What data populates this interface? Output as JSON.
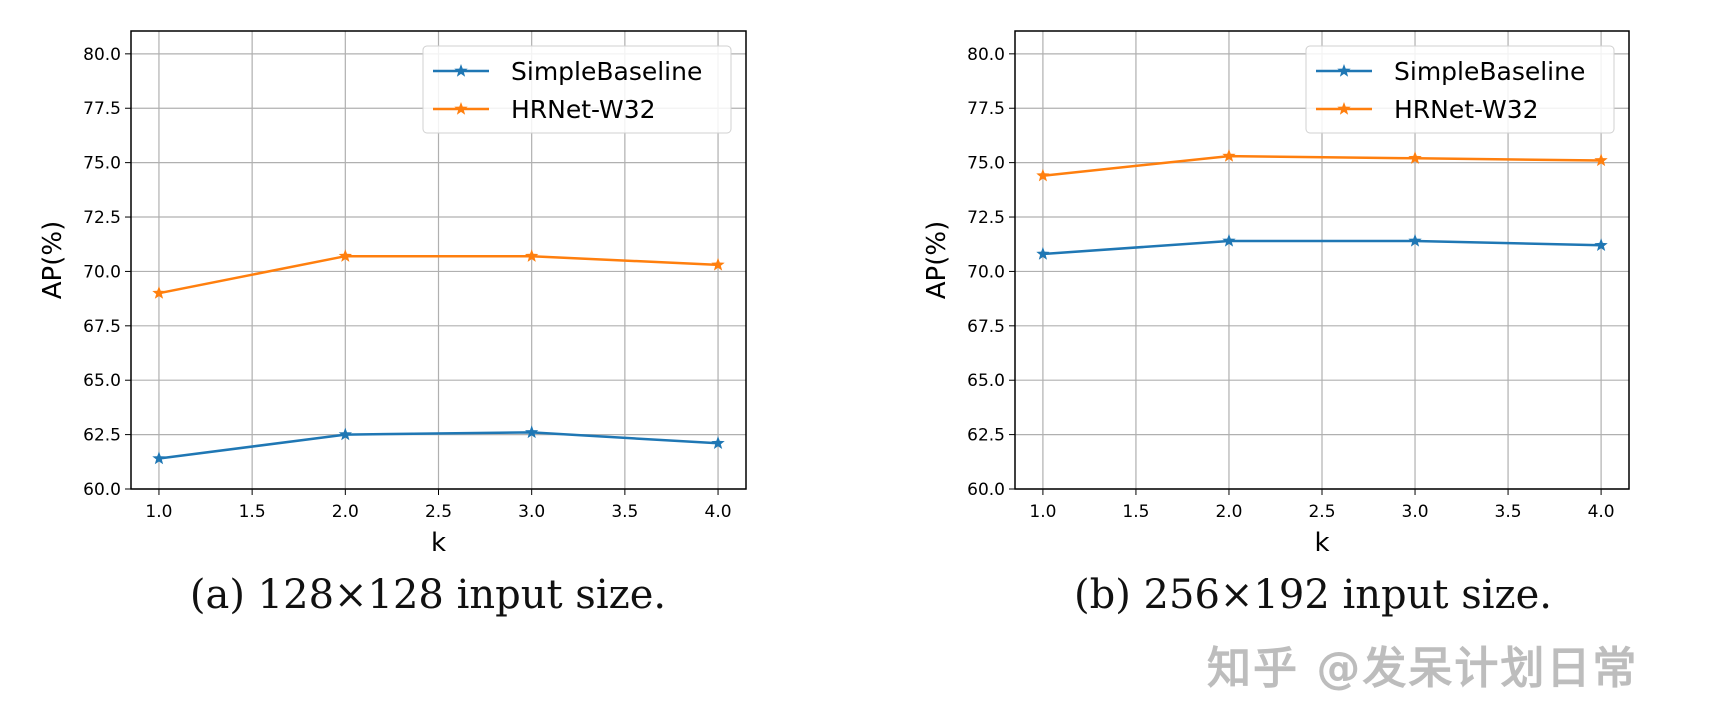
{
  "chart_data": [
    {
      "type": "line",
      "caption": "(a) 128×128 input size.",
      "xlabel": "k",
      "ylabel": "AP(%)",
      "x": [
        1.0,
        2.0,
        3.0,
        4.0
      ],
      "xticks": [
        "1.0",
        "1.5",
        "2.0",
        "2.5",
        "3.0",
        "3.5",
        "4.0"
      ],
      "yticks": [
        "60.0",
        "62.5",
        "65.0",
        "67.5",
        "70.0",
        "72.5",
        "75.0",
        "77.5",
        "80.0"
      ],
      "xlim": [
        0.85,
        4.15
      ],
      "ylim": [
        60,
        81.05
      ],
      "grid": true,
      "legend_position": "top-right",
      "marker": "star",
      "series": [
        {
          "name": "SimpleBaseline",
          "color": "#1f77b4",
          "values": [
            61.4,
            62.5,
            62.6,
            62.1
          ]
        },
        {
          "name": "HRNet-W32",
          "color": "#ff7f0e",
          "values": [
            69.0,
            70.7,
            70.7,
            70.3
          ]
        }
      ]
    },
    {
      "type": "line",
      "caption": "(b) 256×192 input size.",
      "xlabel": "k",
      "ylabel": "AP(%)",
      "x": [
        1.0,
        2.0,
        3.0,
        4.0
      ],
      "xticks": [
        "1.0",
        "1.5",
        "2.0",
        "2.5",
        "3.0",
        "3.5",
        "4.0"
      ],
      "yticks": [
        "60.0",
        "62.5",
        "65.0",
        "67.5",
        "70.0",
        "72.5",
        "75.0",
        "77.5",
        "80.0"
      ],
      "xlim": [
        0.85,
        4.15
      ],
      "ylim": [
        60,
        81.05
      ],
      "grid": true,
      "legend_position": "top-right",
      "marker": "star",
      "series": [
        {
          "name": "SimpleBaseline",
          "color": "#1f77b4",
          "values": [
            70.8,
            71.4,
            71.4,
            71.2
          ]
        },
        {
          "name": "HRNet-W32",
          "color": "#ff7f0e",
          "values": [
            74.4,
            75.3,
            75.2,
            75.1
          ]
        }
      ]
    }
  ],
  "watermark": "知乎 @发呆计划日常"
}
